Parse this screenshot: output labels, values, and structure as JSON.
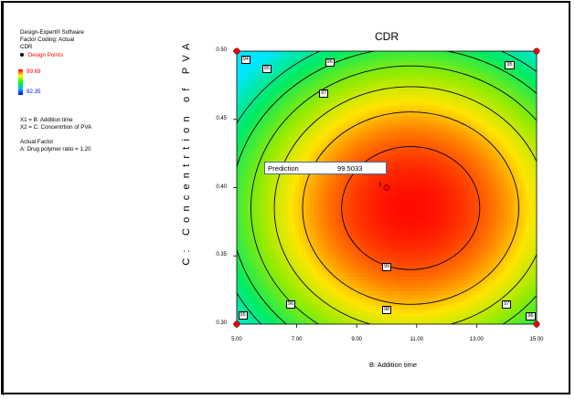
{
  "info_panel": {
    "software": "Design-Expert® Software",
    "coding": "Factor Coding: Actual",
    "response": "CDR",
    "design_points_label": "Design Points",
    "legend_max": "99.69",
    "legend_min": "92.35",
    "x1_def": "X1 = B: Addition time",
    "x2_def": "X2 = C: Concentrtion of PVA",
    "actual_factor_heading": "Actual Factor",
    "actual_factor_value": "A: Drug polymer ratio = 1.20",
    "colors": {
      "design_point": "#ff0000",
      "legend_max": "#ff0000",
      "legend_min": "#0000ff"
    }
  },
  "prediction": {
    "label": "Prediction",
    "value": "99.5033",
    "point_count": "3"
  },
  "chart_data": {
    "type": "contour",
    "title": "CDR",
    "xlabel": "B: Addition time",
    "ylabel": "C: Concentrtion of PVA",
    "xlim": [
      5.0,
      15.0
    ],
    "ylim": [
      0.3,
      0.5
    ],
    "x_ticks": [
      "5.00",
      "7.00",
      "9.00",
      "11.00",
      "13.00",
      "15.00"
    ],
    "y_ticks": [
      "0.30",
      "0.35",
      "0.40",
      "0.45",
      "0.50"
    ],
    "surface": {
      "max_value": 99.69,
      "min_value": 92.35,
      "peak_x": 10.8,
      "peak_y": 0.385
    },
    "contours": [
      {
        "level": 94,
        "label": "94",
        "label_x": 5.3,
        "label_y": 0.494
      },
      {
        "level": 95,
        "label": "95",
        "label_x": 6.0,
        "label_y": 0.487
      },
      {
        "level": 95,
        "label": "95",
        "label_x": 14.1,
        "label_y": 0.49
      },
      {
        "level": 95,
        "label": "95",
        "label_x": 5.2,
        "label_y": 0.307
      },
      {
        "level": 96,
        "label": "96",
        "label_x": 8.1,
        "label_y": 0.492
      },
      {
        "level": 96,
        "label": "96",
        "label_x": 6.8,
        "label_y": 0.315
      },
      {
        "level": 96,
        "label": "96",
        "label_x": 14.8,
        "label_y": 0.306
      },
      {
        "level": 97,
        "label": "97",
        "label_x": 7.9,
        "label_y": 0.469
      },
      {
        "level": 97,
        "label": "97",
        "label_x": 14.0,
        "label_y": 0.315
      },
      {
        "level": 98,
        "label": "98",
        "label_x": 10.0,
        "label_y": 0.311
      },
      {
        "level": 99,
        "label": "99",
        "label_x": 10.0,
        "label_y": 0.342
      }
    ],
    "design_points": [
      {
        "x": 5.0,
        "y": 0.5
      },
      {
        "x": 15.0,
        "y": 0.5
      },
      {
        "x": 5.0,
        "y": 0.3
      },
      {
        "x": 15.0,
        "y": 0.3
      },
      {
        "x": 10.0,
        "y": 0.4
      }
    ],
    "grid": false
  }
}
